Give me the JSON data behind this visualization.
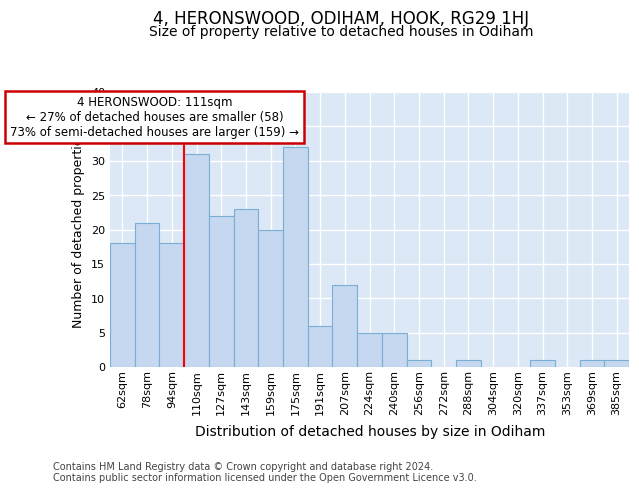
{
  "title": "4, HERONSWOOD, ODIHAM, HOOK, RG29 1HJ",
  "subtitle": "Size of property relative to detached houses in Odiham",
  "xlabel": "Distribution of detached houses by size in Odiham",
  "ylabel": "Number of detached properties",
  "categories": [
    "62sqm",
    "78sqm",
    "94sqm",
    "110sqm",
    "127sqm",
    "143sqm",
    "159sqm",
    "175sqm",
    "191sqm",
    "207sqm",
    "224sqm",
    "240sqm",
    "256sqm",
    "272sqm",
    "288sqm",
    "304sqm",
    "320sqm",
    "337sqm",
    "353sqm",
    "369sqm",
    "385sqm"
  ],
  "values": [
    18,
    21,
    18,
    31,
    22,
    23,
    20,
    32,
    6,
    12,
    5,
    5,
    1,
    0,
    1,
    0,
    0,
    1,
    0,
    1,
    1
  ],
  "bar_color": "#c5d8ef",
  "bar_edge_color": "#7aafd4",
  "redline_index": 3,
  "annotation_text": "4 HERONSWOOD: 111sqm\n← 27% of detached houses are smaller (58)\n73% of semi-detached houses are larger (159) →",
  "annotation_box_color": "#ffffff",
  "annotation_box_edge_color": "#cc0000",
  "footer_line1": "Contains HM Land Registry data © Crown copyright and database right 2024.",
  "footer_line2": "Contains public sector information licensed under the Open Government Licence v3.0.",
  "ylim": [
    0,
    40
  ],
  "background_color": "#dce8f5",
  "grid_color": "#ffffff",
  "title_fontsize": 12,
  "subtitle_fontsize": 10,
  "tick_fontsize": 8,
  "ylabel_fontsize": 9,
  "xlabel_fontsize": 10,
  "footer_fontsize": 7,
  "ann_fontsize": 8.5
}
